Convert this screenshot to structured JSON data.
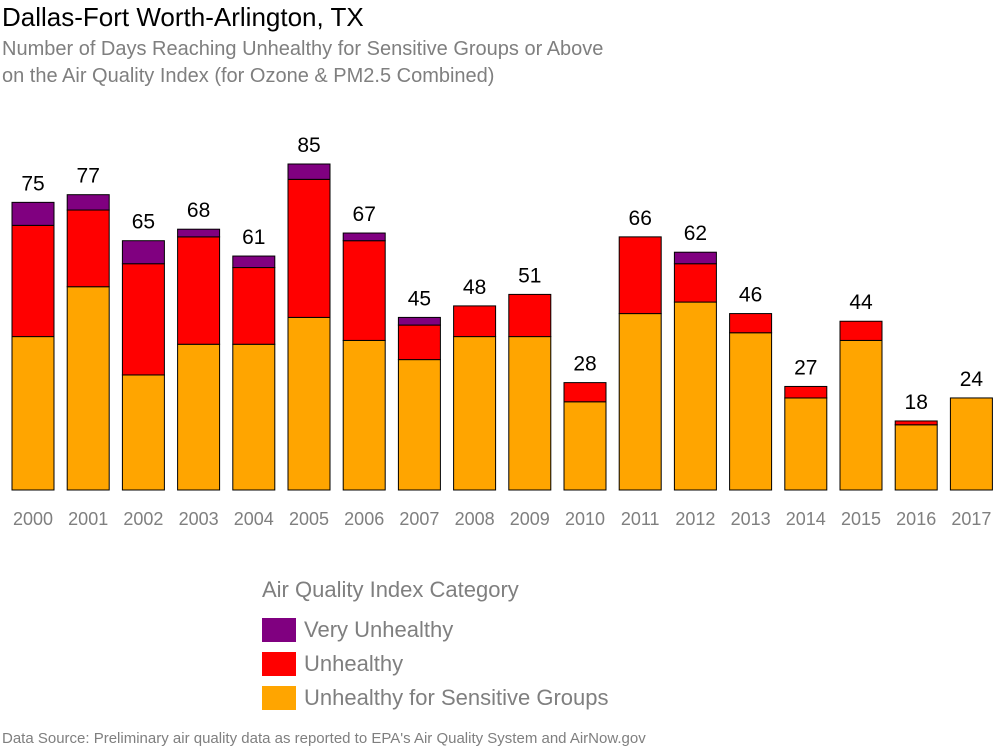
{
  "chart_data": {
    "type": "bar",
    "stacked": true,
    "title": "Dallas-Fort Worth-Arlington, TX",
    "subtitle": "Number of Days Reaching Unhealthy for Sensitive Groups or Above\non the Air Quality Index (for Ozone & PM2.5 Combined)",
    "categories": [
      "2000",
      "2001",
      "2002",
      "2003",
      "2004",
      "2005",
      "2006",
      "2007",
      "2008",
      "2009",
      "2010",
      "2011",
      "2012",
      "2013",
      "2014",
      "2015",
      "2016",
      "2017"
    ],
    "series": [
      {
        "name": "Unhealthy for Sensitive Groups",
        "color": "#FFA500",
        "values": [
          40,
          53,
          30,
          38,
          38,
          45,
          39,
          34,
          40,
          40,
          23,
          46,
          49,
          41,
          24,
          39,
          17,
          24
        ]
      },
      {
        "name": "Unhealthy",
        "color": "#FF0000",
        "values": [
          29,
          20,
          29,
          28,
          20,
          36,
          26,
          9,
          8,
          11,
          5,
          20,
          10,
          5,
          3,
          5,
          1,
          0
        ]
      },
      {
        "name": "Very Unhealthy",
        "color": "#800080",
        "values": [
          6,
          4,
          6,
          2,
          3,
          4,
          2,
          2,
          0,
          0,
          0,
          0,
          3,
          0,
          0,
          0,
          0,
          0
        ]
      }
    ],
    "totals": [
      75,
      77,
      65,
      68,
      61,
      85,
      67,
      45,
      48,
      51,
      28,
      66,
      62,
      46,
      27,
      44,
      18,
      24
    ],
    "ylim": [
      0,
      85
    ],
    "grid": false,
    "legend": {
      "title": "Air Quality Index Category",
      "placement": "bottom",
      "entries": [
        {
          "label": "Very Unhealthy",
          "color": "#800080"
        },
        {
          "label": "Unhealthy",
          "color": "#FF0000"
        },
        {
          "label": "Unhealthy for Sensitive Groups",
          "color": "#FFA500"
        }
      ]
    }
  },
  "source": "Data Source: Preliminary air quality data as reported to EPA's Air Quality System and AirNow.gov"
}
